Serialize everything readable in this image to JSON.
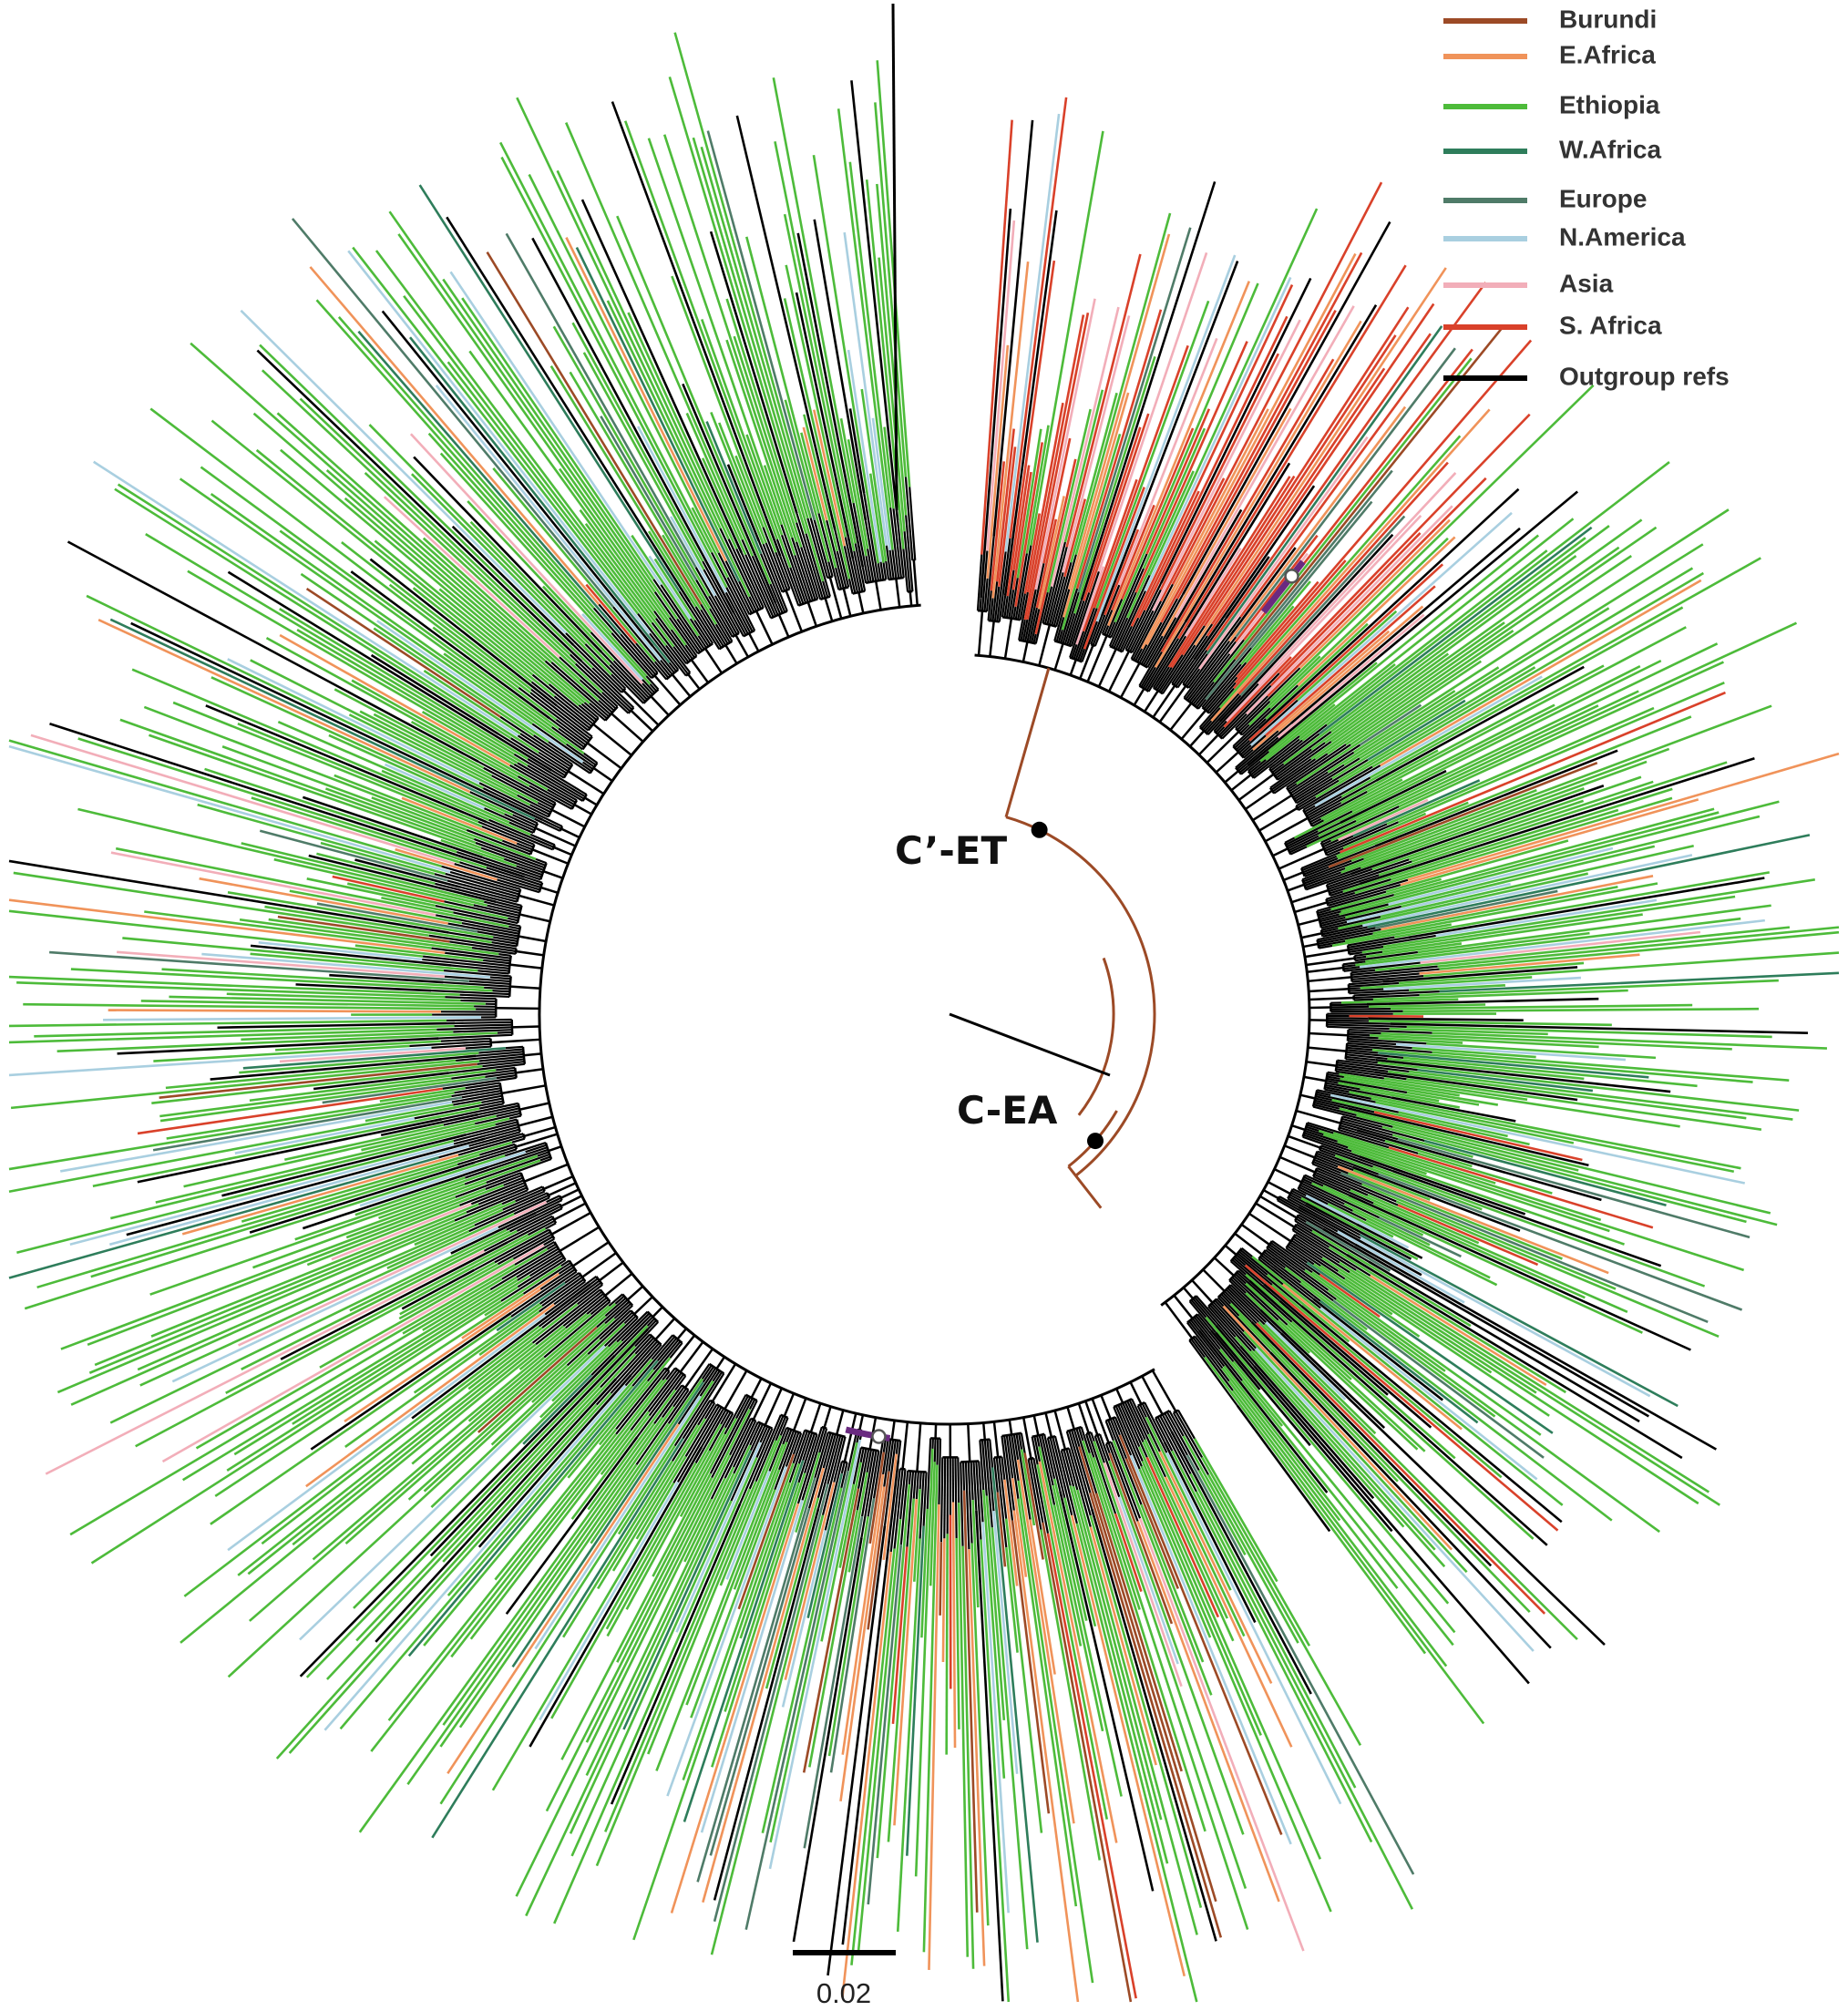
{
  "legend": {
    "items": [
      {
        "label": "Burundi",
        "color": "#9c4a26"
      },
      {
        "label": "E.Africa",
        "color": "#f0935a"
      },
      {
        "label": "Ethiopia",
        "color": "#4dbb3a"
      },
      {
        "label": "W.Africa",
        "color": "#2e7d5b"
      },
      {
        "label": "Europe",
        "color": "#4f7b68"
      },
      {
        "label": "N.America",
        "color": "#a9cfe0"
      },
      {
        "label": "Asia",
        "color": "#f2aeb9"
      },
      {
        "label": "S. Africa",
        "color": "#d9412a"
      },
      {
        "label": "Outgroup refs",
        "color": "#000000"
      }
    ]
  },
  "clades": [
    {
      "label": "C’-ET"
    },
    {
      "label": "C-EA"
    }
  ],
  "scale_bar": {
    "label": "0.02"
  }
}
